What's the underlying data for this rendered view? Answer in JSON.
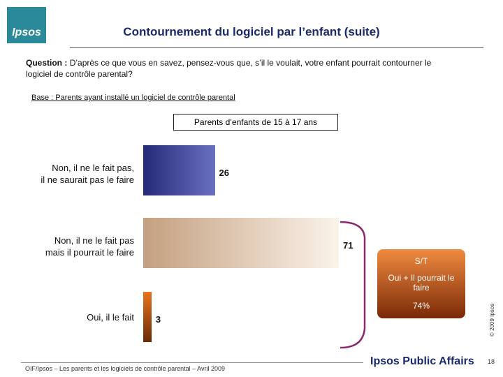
{
  "slide": {
    "logo": "Ipsos",
    "title": "Contournement du logiciel par l’enfant (suite)",
    "question_label": "Question :",
    "question_text": "D’après ce que vous en savez, pensez-vous que, s’il le voulait, votre enfant pourrait contourner le logiciel de contrôle parental?",
    "base": "Base : Parents ayant installé un logiciel de contrôle parental",
    "footer": "OIF/Ipsos – Les parents et les logiciels de contrôle parental – Avril 2009",
    "brand": "Ipsos Public Affairs",
    "copyright": "© 2009 Ipsos",
    "page": "18"
  },
  "chart_data": {
    "type": "bar",
    "subtitle": "Parents d’enfants de 15 à 17 ans",
    "categories": [
      "Non, il ne le fait pas,\nil ne saurait pas le faire",
      "Non, il ne le fait pas\nmais il pourrait le faire",
      "Oui, il le fait"
    ],
    "values": [
      26,
      71,
      3
    ],
    "colors": [
      [
        "#252a78",
        "#6a70c0"
      ],
      [
        "#c4a080",
        "#fbf3ea"
      ],
      [
        "#e8741c",
        "#6a2a08"
      ]
    ],
    "summary": {
      "title": "S/T",
      "label": "Oui + Il pourrait le faire",
      "value": 74,
      "value_label": "74%"
    }
  }
}
